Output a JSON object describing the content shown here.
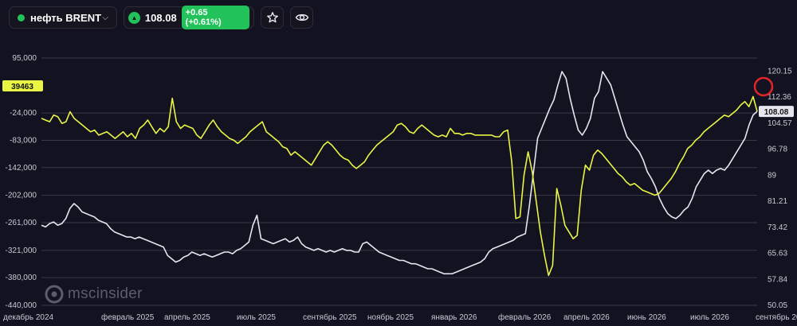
{
  "toolbar": {
    "symbol": "нефть BRENT",
    "price": "108.08",
    "change": "+0.65 (+0.61%)"
  },
  "watermark": "mscinsider",
  "colors": {
    "background": "#131221",
    "grid": "#3a3947",
    "white_series": "#e6e6ee",
    "yellow_series": "#e8f545",
    "badge_green": "#22c25a",
    "marker_red": "#e3242b"
  },
  "icons": [
    "chevron-down-icon",
    "up-triangle-icon",
    "star-icon",
    "eye-icon",
    "watermark-logo-icon"
  ],
  "chart_data": {
    "type": "line",
    "x_ticks": [
      "декабрь 2024",
      "февраль 2025",
      "апрель 2025",
      "июль 2025",
      "сентябрь 2025",
      "ноябрь 2025",
      "январь 2026",
      "февраль 2026",
      "апрель 2026",
      "июнь 2026",
      "июль 2026",
      "сентябрь 2026"
    ],
    "left_axis": {
      "ticks": [
        "95,000",
        "-24,000",
        "-83,000",
        "-142,000",
        "-202,000",
        "-261,000",
        "-321,000",
        "-380,000",
        "-440,000"
      ],
      "values": [
        95000,
        -24000,
        -83000,
        -142000,
        -202000,
        -261000,
        -321000,
        -380000,
        -440000
      ],
      "range": [
        -440000,
        95000
      ],
      "current_label": "39463"
    },
    "right_axis": {
      "ticks": [
        "120.15",
        "112.36",
        "104.57",
        "96.78",
        "89",
        "81.21",
        "73.42",
        "65.63",
        "57.84",
        "50.05"
      ],
      "values": [
        120.15,
        112.36,
        104.57,
        96.78,
        89,
        81.21,
        73.42,
        65.63,
        57.84,
        50.05
      ],
      "range": [
        50.05,
        124.05
      ],
      "current_label": "108.08"
    },
    "series": [
      {
        "axis": "right",
        "color": "#e6e6ee",
        "values": [
          74,
          73.5,
          74.5,
          75,
          74,
          74.5,
          76,
          79,
          80.5,
          79.5,
          78,
          77.5,
          77,
          76.5,
          75.5,
          75,
          74.5,
          73,
          72,
          71.5,
          71,
          70.5,
          70.5,
          70,
          70.5,
          70,
          69.5,
          69,
          68.5,
          68,
          67.5,
          65,
          64,
          63,
          63.5,
          64.5,
          65,
          66,
          65.5,
          65,
          65.5,
          65,
          64.5,
          65,
          65.5,
          66,
          66,
          65.5,
          66.5,
          67,
          68,
          69,
          74,
          77,
          70,
          69.5,
          69,
          68.5,
          69,
          69.5,
          70,
          69,
          69.5,
          70.5,
          68.5,
          67.5,
          67,
          66.5,
          67,
          66.5,
          66,
          66.5,
          66,
          66.5,
          67,
          66.5,
          66.5,
          66,
          66,
          68.5,
          69,
          68,
          67,
          66,
          65.5,
          65,
          64.5,
          64,
          63.5,
          63.5,
          63,
          62.5,
          62.5,
          62,
          61.5,
          61,
          61,
          60.5,
          60,
          59.5,
          59.5,
          59.5,
          60,
          60.5,
          61,
          61.5,
          62,
          62.5,
          63,
          64,
          66,
          67,
          67.5,
          68,
          68.5,
          69,
          69.5,
          70.5,
          71,
          71.5,
          80,
          90,
          100,
          103,
          106,
          109,
          111.5,
          116,
          120,
          118,
          112,
          107,
          102.5,
          101,
          103,
          106,
          112,
          114,
          120,
          118,
          116,
          112,
          108,
          104,
          100.5,
          99,
          97.5,
          96,
          93.5,
          90,
          88,
          85.5,
          82,
          79.5,
          77.5,
          76.5,
          76,
          77,
          78.5,
          79.5,
          82,
          85.5,
          87.5,
          89.5,
          90.5,
          89.5,
          90.5,
          91,
          90.5,
          92,
          94,
          96,
          98,
          100,
          104,
          107,
          108.08
        ]
      },
      {
        "axis": "right",
        "color": "#e8f545",
        "values": [
          106,
          105.5,
          105,
          107,
          106.5,
          104.5,
          105,
          108,
          106,
          105,
          104,
          103,
          102,
          102.5,
          101,
          101.5,
          102,
          101,
          100,
          101,
          102,
          100.5,
          101.5,
          100,
          103,
          104,
          105.5,
          103.5,
          101.5,
          103,
          102,
          103.5,
          112,
          105,
          103,
          104,
          103.5,
          103,
          101,
          100,
          102,
          104,
          105.5,
          103.5,
          102,
          101,
          100,
          99.5,
          98.5,
          99.5,
          100.5,
          102,
          103,
          104,
          105,
          102,
          101,
          100,
          99,
          97.5,
          97,
          95,
          96,
          95,
          94,
          93,
          92,
          94,
          96,
          98,
          99,
          98,
          96.5,
          95,
          94,
          93.5,
          92,
          91,
          92,
          93,
          95,
          96.5,
          98,
          99,
          100,
          101,
          102,
          104,
          104.5,
          103.5,
          102,
          101.5,
          103,
          104,
          103,
          102,
          101,
          100.5,
          101,
          100.5,
          103,
          101.5,
          101.5,
          101,
          101.5,
          101.5,
          101,
          101,
          101,
          101,
          101,
          100.5,
          100.5,
          102,
          102.5,
          93,
          76,
          76.5,
          89,
          96,
          90,
          81,
          72,
          65,
          59,
          62,
          85,
          80,
          74,
          72,
          70,
          71,
          84.5,
          92,
          90.5,
          95,
          96.5,
          95.5,
          94,
          92.5,
          91,
          89.5,
          88.5,
          87,
          86,
          86.5,
          85.5,
          84.5,
          84,
          83.5,
          83,
          83.5,
          85,
          86.5,
          88,
          90,
          92.5,
          94.5,
          97,
          98,
          99.5,
          100.5,
          102,
          103,
          104,
          105,
          106,
          107,
          106.5,
          107.5,
          108.5,
          110,
          111,
          109.5,
          112.5,
          108.08
        ]
      }
    ],
    "grid": true,
    "watermark": "mscinsider"
  }
}
